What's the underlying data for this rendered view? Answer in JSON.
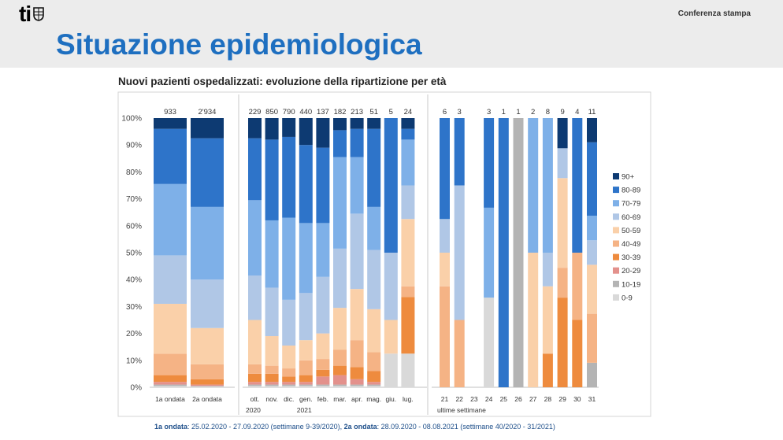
{
  "header": {
    "logo_text": "ti",
    "press_label": "Conferenza stampa",
    "slide_title": "Situazione epidemiologica"
  },
  "colors": {
    "title": "#1e6fc0",
    "header_bg": "#ececec"
  },
  "chart_data": {
    "type": "bar",
    "stacked": true,
    "title": "Nuovi pazienti ospedalizzati: evoluzione della ripartizione per età",
    "ylim": [
      0,
      100
    ],
    "yticks": [
      "0%",
      "10%",
      "20%",
      "30%",
      "40%",
      "50%",
      "60%",
      "70%",
      "80%",
      "90%",
      "100%"
    ],
    "legend_position": "right",
    "age_groups": [
      "0-9",
      "10-19",
      "20-29",
      "30-39",
      "40-49",
      "50-59",
      "60-69",
      "70-79",
      "80-89",
      "90+"
    ],
    "age_colors": [
      "#d9d9d9",
      "#b4b4b4",
      "#e3918c",
      "#ee8b3e",
      "#f5b385",
      "#fad0a9",
      "#b0c7e6",
      "#7eb0e8",
      "#2e74c9",
      "#0d3a72"
    ],
    "legend_order": [
      "90+",
      "80-89",
      "70-79",
      "60-69",
      "50-59",
      "40-49",
      "30-39",
      "20-29",
      "10-19",
      "0-9"
    ],
    "panels": [
      {
        "name": "ondate",
        "bars": [
          {
            "label": "1a ondata",
            "total": "933",
            "values": [
              0.5,
              0.5,
              1.0,
              2.5,
              8.0,
              18.5,
              18.0,
              26.5,
              20.5,
              4.0
            ]
          },
          {
            "label": "2a ondata",
            "total": "2'934",
            "values": [
              0.3,
              0.2,
              0.5,
              2.0,
              5.5,
              13.5,
              18.0,
              27.0,
              25.5,
              7.5
            ]
          }
        ],
        "footer": []
      },
      {
        "name": "mesi",
        "bars": [
          {
            "label": "ott.",
            "total": "229",
            "values": [
              0.5,
              0.5,
              1.0,
              3.0,
              3.5,
              16.5,
              16.5,
              28.0,
              23.0,
              7.5
            ]
          },
          {
            "label": "nov.",
            "total": "850",
            "values": [
              0.5,
              0.5,
              1.0,
              3.0,
              3.0,
              11.0,
              18.0,
              25.0,
              30.0,
              8.0
            ]
          },
          {
            "label": "dic.",
            "total": "790",
            "values": [
              0.5,
              0.5,
              1.0,
              2.0,
              3.0,
              8.5,
              17.0,
              30.5,
              30.0,
              7.0
            ]
          },
          {
            "label": "gen.",
            "total": "440",
            "values": [
              0.5,
              0.5,
              1.0,
              2.5,
              5.5,
              7.5,
              17.5,
              26.0,
              29.0,
              10.0
            ]
          },
          {
            "label": "feb.",
            "total": "137",
            "values": [
              0.5,
              0.5,
              3.0,
              2.5,
              4.0,
              9.5,
              21.0,
              20.0,
              28.0,
              11.0
            ]
          },
          {
            "label": "mar.",
            "total": "182",
            "values": [
              0.5,
              0.5,
              3.5,
              3.5,
              6.0,
              15.5,
              22.0,
              34.0,
              10.0,
              4.5
            ]
          },
          {
            "label": "apr.",
            "total": "213",
            "values": [
              0.5,
              0.5,
              2.0,
              4.5,
              10.0,
              19.0,
              28.0,
              21.0,
              10.5,
              4.0
            ]
          },
          {
            "label": "mag.",
            "total": "51",
            "values": [
              0.5,
              0.5,
              1.0,
              4.0,
              7.0,
              16.0,
              22.0,
              16.0,
              29.0,
              4.0
            ]
          },
          {
            "label": "giu.",
            "total": "5",
            "values": [
              12.5,
              0.0,
              0.0,
              0.0,
              0.0,
              12.5,
              25.0,
              0.0,
              50.0,
              0.0
            ]
          },
          {
            "label": "lug.",
            "total": "24",
            "values": [
              12.5,
              0.0,
              0.0,
              21.0,
              4.0,
              25.0,
              12.5,
              17.0,
              4.0,
              4.0
            ]
          }
        ],
        "footer": [
          {
            "text": "2020",
            "at": 0
          },
          {
            "text": "2021",
            "at": 3
          }
        ]
      },
      {
        "name": "settimane",
        "bars": [
          {
            "label": "21",
            "total": "6",
            "values": [
              0.0,
              0.0,
              0.0,
              0.0,
              37.5,
              12.5,
              12.5,
              0.0,
              37.5,
              0.0
            ]
          },
          {
            "label": "22",
            "total": "3",
            "values": [
              0.0,
              0.0,
              0.0,
              0.0,
              25.0,
              0.0,
              50.0,
              0.0,
              25.0,
              0.0
            ]
          },
          {
            "label": "23",
            "total": "",
            "values": [
              0,
              0,
              0,
              0,
              0,
              0,
              0,
              0,
              0,
              0
            ]
          },
          {
            "label": "24",
            "total": "3",
            "values": [
              33.3,
              0.0,
              0.0,
              0.0,
              0.0,
              0.0,
              0.0,
              33.4,
              33.3,
              0.0
            ]
          },
          {
            "label": "25",
            "total": "1",
            "values": [
              0,
              0,
              0,
              0,
              0,
              0,
              0,
              0,
              100,
              0
            ]
          },
          {
            "label": "26",
            "total": "1",
            "values": [
              0,
              100,
              0,
              0,
              0,
              0,
              0,
              0,
              0,
              0
            ]
          },
          {
            "label": "27",
            "total": "2",
            "values": [
              0,
              0,
              0,
              0,
              0,
              50,
              0,
              50,
              0,
              0
            ]
          },
          {
            "label": "28",
            "total": "8",
            "values": [
              0.0,
              0.0,
              0.0,
              12.5,
              0.0,
              25.0,
              12.5,
              50.0,
              0.0,
              0.0
            ]
          },
          {
            "label": "29",
            "total": "9",
            "values": [
              0.0,
              0.0,
              0.0,
              33.3,
              11.1,
              33.3,
              11.1,
              0.0,
              0.0,
              11.2
            ]
          },
          {
            "label": "30",
            "total": "4",
            "values": [
              0,
              0,
              0,
              25,
              25,
              0,
              0,
              0,
              50,
              0
            ]
          },
          {
            "label": "31",
            "total": "11",
            "values": [
              0.0,
              9.1,
              0.0,
              0.0,
              18.2,
              18.2,
              9.1,
              9.1,
              27.3,
              9.0
            ]
          }
        ],
        "footer": [
          {
            "text": "ultime settimane",
            "at": 0
          }
        ]
      }
    ]
  },
  "footnote": {
    "w1_label": "1a ondata",
    "w1_text": ": 25.02.2020 - 27.09.2020 (settimane 9-39/2020), ",
    "w2_label": "2a ondata",
    "w2_text": ": 28.09.2020 - 08.08.2021 (settimane 40/2020 - 31/2021)"
  }
}
